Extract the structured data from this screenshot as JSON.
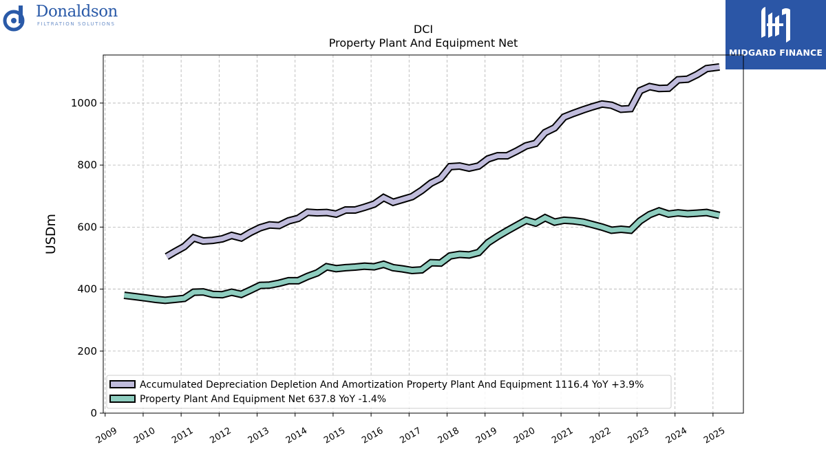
{
  "brand_left": {
    "name": "Donaldson",
    "tagline": "FILTRATION SOLUTIONS",
    "brand_color": "#2a5aa8"
  },
  "brand_right": {
    "name": "MIDGARD FINANCE",
    "background": "#2b56a6"
  },
  "chart_data": {
    "type": "line",
    "title": "DCI",
    "subtitle": "Property Plant And Equipment Net",
    "ylabel": "USDm",
    "xlabel": "",
    "ylim": [
      0,
      1155
    ],
    "xlim": [
      2008.95,
      2025.8
    ],
    "yticks": [
      0,
      200,
      400,
      600,
      800,
      1000
    ],
    "xticks": [
      "2009",
      "2010",
      "2011",
      "2012",
      "2013",
      "2014",
      "2015",
      "2016",
      "2017",
      "2018",
      "2019",
      "2020",
      "2021",
      "2022",
      "2023",
      "2024",
      "2025"
    ],
    "grid": true,
    "legend_position": "lower-left",
    "series": [
      {
        "name": "Accumulated Depreciation Depletion And Amortization Property Plant And Equipment",
        "legend_label": "Accumulated Depreciation Depletion And Amortization Property Plant And Equipment  1116.4 YoY +3.9%",
        "color": "#c0bcdc",
        "points": [
          [
            2010.62,
            505
          ],
          [
            2010.83,
            520
          ],
          [
            2011.08,
            537
          ],
          [
            2011.33,
            565
          ],
          [
            2011.58,
            555
          ],
          [
            2011.83,
            557
          ],
          [
            2012.08,
            562
          ],
          [
            2012.33,
            573
          ],
          [
            2012.58,
            565
          ],
          [
            2012.83,
            583
          ],
          [
            2013.08,
            598
          ],
          [
            2013.33,
            607
          ],
          [
            2013.58,
            605
          ],
          [
            2013.83,
            620
          ],
          [
            2014.08,
            628
          ],
          [
            2014.33,
            648
          ],
          [
            2014.58,
            646
          ],
          [
            2014.83,
            647
          ],
          [
            2015.08,
            642
          ],
          [
            2015.33,
            655
          ],
          [
            2015.58,
            655
          ],
          [
            2015.83,
            664
          ],
          [
            2016.08,
            674
          ],
          [
            2016.33,
            695
          ],
          [
            2016.58,
            680
          ],
          [
            2016.83,
            689
          ],
          [
            2017.08,
            698
          ],
          [
            2017.33,
            718
          ],
          [
            2017.58,
            742
          ],
          [
            2017.83,
            757
          ],
          [
            2018.08,
            795
          ],
          [
            2018.33,
            797
          ],
          [
            2018.58,
            790
          ],
          [
            2018.83,
            797
          ],
          [
            2019.08,
            820
          ],
          [
            2019.33,
            830
          ],
          [
            2019.58,
            830
          ],
          [
            2019.83,
            845
          ],
          [
            2020.08,
            862
          ],
          [
            2020.33,
            870
          ],
          [
            2020.58,
            905
          ],
          [
            2020.83,
            920
          ],
          [
            2021.08,
            955
          ],
          [
            2021.33,
            967
          ],
          [
            2021.58,
            978
          ],
          [
            2021.83,
            988
          ],
          [
            2022.08,
            997
          ],
          [
            2022.33,
            993
          ],
          [
            2022.58,
            980
          ],
          [
            2022.83,
            982
          ],
          [
            2023.08,
            1040
          ],
          [
            2023.33,
            1053
          ],
          [
            2023.58,
            1047
          ],
          [
            2023.83,
            1048
          ],
          [
            2024.08,
            1075
          ],
          [
            2024.33,
            1077
          ],
          [
            2024.58,
            1092
          ],
          [
            2024.83,
            1111
          ],
          [
            2025.17,
            1116.4
          ]
        ]
      },
      {
        "name": "Property Plant And Equipment Net",
        "legend_label": "Property Plant And Equipment Net  637.8 YoY -1.4%",
        "color": "#8ecdbf",
        "points": [
          [
            2009.5,
            380
          ],
          [
            2009.83,
            375
          ],
          [
            2010.08,
            371
          ],
          [
            2010.33,
            367
          ],
          [
            2010.58,
            364
          ],
          [
            2010.83,
            367
          ],
          [
            2011.08,
            370
          ],
          [
            2011.33,
            390
          ],
          [
            2011.58,
            391
          ],
          [
            2011.83,
            383
          ],
          [
            2012.08,
            382
          ],
          [
            2012.33,
            390
          ],
          [
            2012.58,
            383
          ],
          [
            2012.83,
            397
          ],
          [
            2013.08,
            412
          ],
          [
            2013.33,
            413
          ],
          [
            2013.58,
            419
          ],
          [
            2013.83,
            427
          ],
          [
            2014.08,
            427
          ],
          [
            2014.33,
            441
          ],
          [
            2014.58,
            452
          ],
          [
            2014.83,
            472
          ],
          [
            2015.08,
            466
          ],
          [
            2015.33,
            469
          ],
          [
            2015.58,
            471
          ],
          [
            2015.83,
            474
          ],
          [
            2016.08,
            472
          ],
          [
            2016.33,
            480
          ],
          [
            2016.58,
            469
          ],
          [
            2016.83,
            465
          ],
          [
            2017.08,
            460
          ],
          [
            2017.33,
            462
          ],
          [
            2017.58,
            485
          ],
          [
            2017.83,
            484
          ],
          [
            2018.08,
            507
          ],
          [
            2018.33,
            512
          ],
          [
            2018.58,
            510
          ],
          [
            2018.83,
            518
          ],
          [
            2019.08,
            550
          ],
          [
            2019.33,
            570
          ],
          [
            2019.58,
            588
          ],
          [
            2019.83,
            605
          ],
          [
            2020.08,
            622
          ],
          [
            2020.33,
            613
          ],
          [
            2020.58,
            630
          ],
          [
            2020.83,
            616
          ],
          [
            2021.08,
            622
          ],
          [
            2021.33,
            620
          ],
          [
            2021.58,
            616
          ],
          [
            2021.83,
            608
          ],
          [
            2022.08,
            600
          ],
          [
            2022.33,
            590
          ],
          [
            2022.58,
            593
          ],
          [
            2022.83,
            590
          ],
          [
            2023.08,
            620
          ],
          [
            2023.33,
            640
          ],
          [
            2023.58,
            652
          ],
          [
            2023.83,
            642
          ],
          [
            2024.08,
            646
          ],
          [
            2024.33,
            643
          ],
          [
            2024.58,
            645
          ],
          [
            2024.83,
            647
          ],
          [
            2025.17,
            637.8
          ]
        ]
      }
    ]
  }
}
